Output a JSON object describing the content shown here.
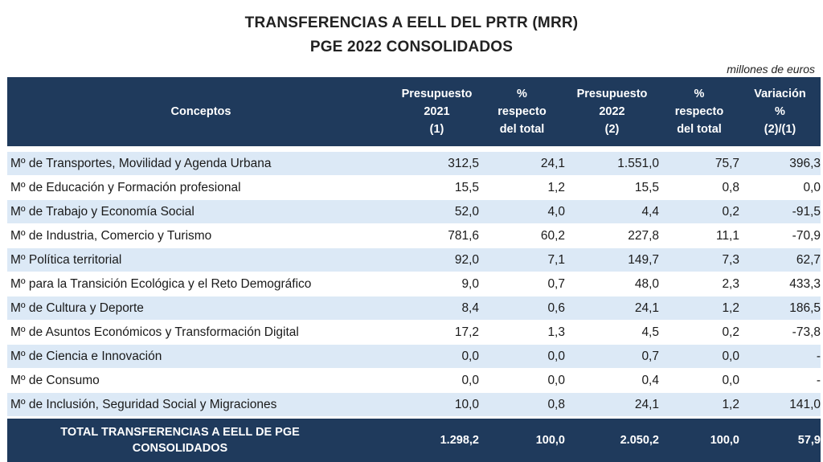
{
  "title_line1": "TRANSFERENCIAS A EELL DEL PRTR  (MRR)",
  "title_line2": "PGE 2022 CONSOLIDADOS",
  "units": "millones de euros",
  "headers": {
    "conceptos": "Conceptos",
    "presupuesto_2021": [
      "Presupuesto",
      "2021",
      "(1)"
    ],
    "pct_2021": [
      "%",
      "respecto",
      "del total"
    ],
    "presupuesto_2022": [
      "Presupuesto",
      "2022",
      "(2)"
    ],
    "pct_2022": [
      "%",
      "respecto",
      "del total"
    ],
    "variacion": [
      "Variación",
      "%",
      "(2)/(1)"
    ]
  },
  "rows": [
    {
      "concepto": "Mº de Transportes, Movilidad y Agenda Urbana",
      "p2021": "312,5",
      "pct2021": "24,1",
      "p2022": "1.551,0",
      "pct2022": "75,7",
      "var": "396,3"
    },
    {
      "concepto": "Mº de Educación y Formación profesional",
      "p2021": "15,5",
      "pct2021": "1,2",
      "p2022": "15,5",
      "pct2022": "0,8",
      "var": "0,0"
    },
    {
      "concepto": "Mº de Trabajo y Economía Social",
      "p2021": "52,0",
      "pct2021": "4,0",
      "p2022": "4,4",
      "pct2022": "0,2",
      "var": "-91,5"
    },
    {
      "concepto": "Mº de Industria, Comercio y Turismo",
      "p2021": "781,6",
      "pct2021": "60,2",
      "p2022": "227,8",
      "pct2022": "11,1",
      "var": "-70,9"
    },
    {
      "concepto": "Mº Política territorial",
      "p2021": "92,0",
      "pct2021": "7,1",
      "p2022": "149,7",
      "pct2022": "7,3",
      "var": "62,7"
    },
    {
      "concepto": "Mº para la Transición Ecológica y el Reto Demográfico",
      "p2021": "9,0",
      "pct2021": "0,7",
      "p2022": "48,0",
      "pct2022": "2,3",
      "var": "433,3"
    },
    {
      "concepto": "Mº de Cultura y Deporte",
      "p2021": "8,4",
      "pct2021": "0,6",
      "p2022": "24,1",
      "pct2022": "1,2",
      "var": "186,5"
    },
    {
      "concepto": "Mº de Asuntos Económicos y Transformación Digital",
      "p2021": "17,2",
      "pct2021": "1,3",
      "p2022": "4,5",
      "pct2022": "0,2",
      "var": "-73,8"
    },
    {
      "concepto": "Mº de Ciencia e Innovación",
      "p2021": "0,0",
      "pct2021": "0,0",
      "p2022": "0,7",
      "pct2022": "0,0",
      "var": "-"
    },
    {
      "concepto": "Mº de Consumo",
      "p2021": "0,0",
      "pct2021": "0,0",
      "p2022": "0,4",
      "pct2022": "0,0",
      "var": "-"
    },
    {
      "concepto": "Mº de Inclusión, Seguridad Social y Migraciones",
      "p2021": "10,0",
      "pct2021": "0,8",
      "p2022": "24,1",
      "pct2022": "1,2",
      "var": "141,0"
    }
  ],
  "total": {
    "concepto": "TOTAL TRANSFERENCIAS A EELL DE PGE CONSOLIDADOS",
    "p2021": "1.298,2",
    "pct2021": "100,0",
    "p2022": "2.050,2",
    "pct2022": "100,0",
    "var": "57,9"
  },
  "colors": {
    "header_bg": "#1f3a5c",
    "row_alt_bg": "#dce9f6"
  }
}
